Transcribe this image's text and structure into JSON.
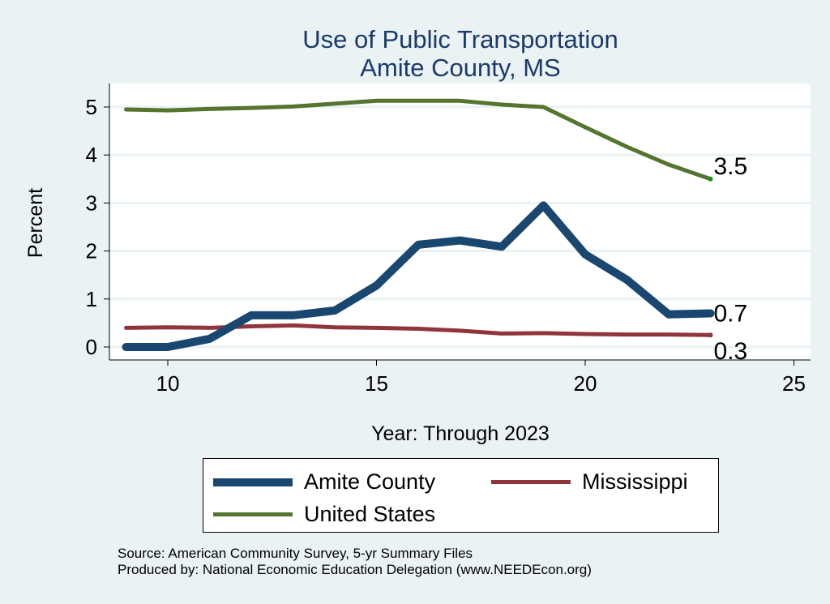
{
  "chart_data": {
    "type": "line",
    "title": [
      "Use of Public Transportation",
      "Amite County, MS"
    ],
    "xlabel": "Year: Through 2023",
    "ylabel": "Percent",
    "xlim": [
      9,
      25.5
    ],
    "ylim": [
      -0.28,
      5.5
    ],
    "xticks": [
      10,
      15,
      20,
      25
    ],
    "yticks": [
      0,
      1,
      2,
      3,
      4,
      5
    ],
    "grid": true,
    "legend_position": "bottom",
    "x": [
      9,
      10,
      11,
      12,
      13,
      14,
      15,
      16,
      17,
      18,
      19,
      20,
      21,
      22,
      23
    ],
    "series": [
      {
        "name": "Amite County",
        "color": "#1a476f",
        "values": [
          0,
          0,
          0.17,
          0.66,
          0.66,
          0.76,
          1.28,
          2.13,
          2.22,
          2.09,
          2.95,
          1.93,
          1.4,
          0.68,
          0.7
        ],
        "end_label": "0.7"
      },
      {
        "name": "Mississippi",
        "color": "#90353b",
        "values": [
          0.4,
          0.41,
          0.4,
          0.43,
          0.45,
          0.41,
          0.4,
          0.38,
          0.34,
          0.28,
          0.29,
          0.27,
          0.26,
          0.26,
          0.25
        ],
        "end_label": "0.3"
      },
      {
        "name": "United States",
        "color": "#55752f",
        "values": [
          4.95,
          4.93,
          4.96,
          4.98,
          5.01,
          5.07,
          5.13,
          5.13,
          5.13,
          5.05,
          5.0,
          4.58,
          4.17,
          3.8,
          3.5
        ],
        "end_label": "3.5"
      }
    ]
  },
  "source": {
    "line1": "Source: American Community Survey, 5-yr Summary Files",
    "line2": "Produced by: National Economic Education Delegation (www.NEEDEcon.org)"
  }
}
